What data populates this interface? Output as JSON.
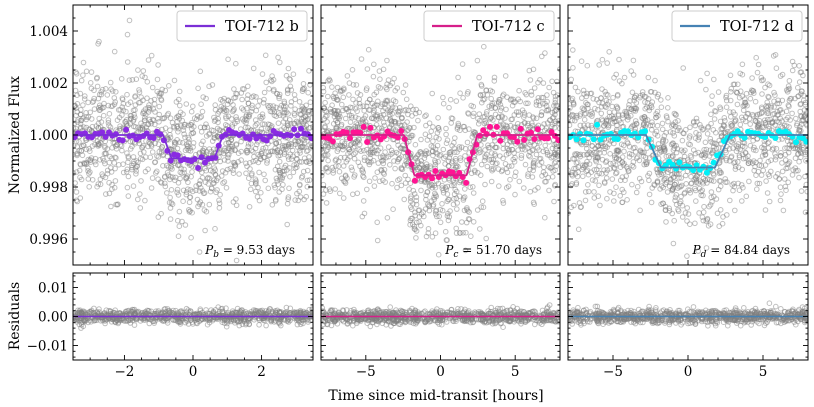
{
  "chart_data": [
    {
      "type": "scatter",
      "planet": "TOI-712 b",
      "color": "#7b2fd6",
      "bin_color": "#8a2be2",
      "period_label": "P",
      "period_sub": "b",
      "period_value": " = 9.53 days",
      "xlim": [
        -3.5,
        3.5
      ],
      "ylim": [
        0.995,
        1.005
      ],
      "xticks": [
        -2,
        0,
        2
      ],
      "transit": {
        "depth": 0.0009,
        "t14": 1.75,
        "tau": 0.25
      },
      "resid_ylim": [
        -0.015,
        0.015
      ]
    },
    {
      "type": "scatter",
      "planet": "TOI-712 c",
      "color": "#d61f8a",
      "bin_color": "#ff1493",
      "period_label": "P",
      "period_sub": "c",
      "period_value": " = 51.70 days",
      "xlim": [
        -8,
        8
      ],
      "ylim": [
        0.995,
        1.005
      ],
      "xticks": [
        -5,
        0,
        5
      ],
      "transit": {
        "depth": 0.00155,
        "t14": 4.9,
        "tau": 0.7
      },
      "resid_ylim": [
        -0.015,
        0.015
      ]
    },
    {
      "type": "scatter",
      "planet": "TOI-712 d",
      "color": "#4682b4",
      "bin_color": "#00f0f8",
      "period_label": "P",
      "period_sub": "d",
      "period_value": " = 84.84 days",
      "xlim": [
        -8,
        8
      ],
      "ylim": [
        0.995,
        1.005
      ],
      "xticks": [
        -5,
        0,
        5
      ],
      "transit": {
        "depth": 0.00125,
        "t14": 5.6,
        "tau": 1.0
      },
      "resid_ylim": [
        -0.015,
        0.015
      ]
    }
  ],
  "yticks": [
    "0.996",
    "0.998",
    "1.000",
    "1.002",
    "1.004"
  ],
  "ytick_values": [
    0.996,
    0.998,
    1.0,
    1.002,
    1.004
  ],
  "resid_yticks": [
    "−0.01",
    "0.00",
    "0.01"
  ],
  "resid_ytick_values": [
    -0.01,
    0.0,
    0.01
  ],
  "ylabel_top": "Normalized Flux",
  "ylabel_bottom": "Residuals",
  "xlabel": "Time since mid-transit [hours]",
  "raw_color": "#808080"
}
